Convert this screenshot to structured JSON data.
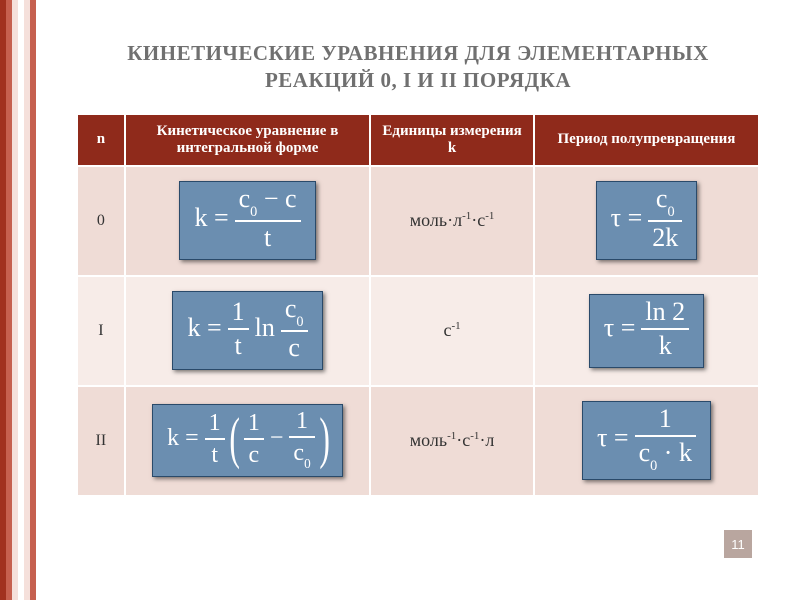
{
  "colors": {
    "rail_bars": [
      "#a1311f",
      "#c6604f",
      "#f5e0db",
      "#ffffff",
      "#f5e0db",
      "#c6604f"
    ],
    "header_bg": "#8f2a1b",
    "row_alt1_bg": "#efdcd6",
    "row_alt2_bg": "#f7ece8",
    "title_color": "#707070",
    "body_text": "#333333",
    "formula_bg": "#6b8eb0",
    "pagenum_bg": "#b9a69f"
  },
  "title": "КИНЕТИЧЕСКИЕ УРАВНЕНИЯ ДЛЯ ЭЛЕМЕНТАРНЫХ РЕАКЦИЙ 0, I И II ПОРЯДКА",
  "title_fontsize": 21,
  "headers": {
    "n": "n",
    "equation": "Кинетическое уравнение в интегральной форме",
    "units": "Единицы измерения k",
    "halflife": "Период полупревращения"
  },
  "header_fontsize": 15,
  "rows": [
    {
      "order": "0",
      "units_html": "моль·л<sup>-1</sup>·с<sup>-1</sup>",
      "k_formula": {
        "lhs": "k =",
        "frac": {
          "num": "c₀ − c",
          "den": "t"
        }
      },
      "tau_formula": {
        "lhs": "τ =",
        "frac": {
          "num": "c₀",
          "den": "2k"
        }
      }
    },
    {
      "order": "I",
      "units_html": "с<sup>-1</sup>",
      "k_formula": {
        "lhs": "k =",
        "pieces": [
          {
            "frac": {
              "num": "1",
              "den": "t"
            }
          },
          "ln",
          {
            "frac": {
              "num": "c₀",
              "den": "c"
            }
          }
        ]
      },
      "tau_formula": {
        "lhs": "τ =",
        "frac": {
          "num": "ln 2",
          "den": "k"
        }
      }
    },
    {
      "order": "II",
      "units_html": "моль<sup>-1</sup>·с<sup>-1</sup>·л",
      "k_formula": {
        "lhs": "k =",
        "pieces": [
          {
            "frac": {
              "num": "1",
              "den": "t"
            }
          },
          {
            "paren": [
              {
                "frac": {
                  "num": "1",
                  "den": "c"
                }
              },
              "−",
              {
                "frac": {
                  "num": "1",
                  "den": "c₀"
                }
              }
            ]
          }
        ]
      },
      "tau_formula": {
        "lhs": "τ =",
        "frac": {
          "num": "1",
          "den": "c₀ · k"
        }
      }
    }
  ],
  "page_number": "11"
}
